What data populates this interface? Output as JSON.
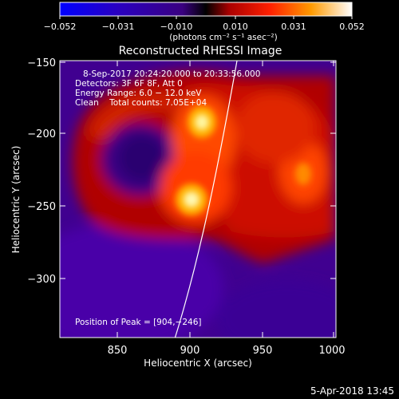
{
  "colorbar": {
    "tick_labels": [
      "−0.052",
      "−0.031",
      "−0.010",
      "0.010",
      "0.031",
      "0.052"
    ],
    "unit_label": "(photons cm⁻² s⁻¹ asec⁻²)"
  },
  "plot": {
    "title": "Reconstructed RHESSI Image",
    "xlabel": "Heliocentric X (arcsec)",
    "ylabel": "Heliocentric Y (arcsec)",
    "x_ticks": [
      "850",
      "900",
      "950",
      "1000"
    ],
    "y_ticks": [
      "−150",
      "−200",
      "−250",
      "−300"
    ],
    "annotations": {
      "time": "8-Sep-2017 20:24:20.000 to 20:33:56.000",
      "detectors": "Detectors: 3F 6F 8F, Att 0",
      "energy": "Energy Range: 6.0 − 12.0 keV",
      "clean": "Clean    Total counts: 7.05E+04",
      "peak": "Position of Peak = [904,−246]"
    }
  },
  "footer": {
    "timestamp": "5-Apr-2018 13:45"
  },
  "chart_data": {
    "type": "heatmap",
    "title": "Reconstructed RHESSI Image",
    "xlabel": "Heliocentric X (arcsec)",
    "ylabel": "Heliocentric Y (arcsec)",
    "xlim": [
      812,
      1010
    ],
    "ylim": [
      -342,
      -147
    ],
    "colorscale_range": [
      -0.052,
      0.052
    ],
    "sources": [
      {
        "x": 911,
        "y": -193,
        "value": 0.05
      },
      {
        "x": 904,
        "y": -246,
        "value": 0.052
      },
      {
        "x": 978,
        "y": -226,
        "value": 0.028
      }
    ],
    "peak": [
      904,
      -246
    ]
  }
}
